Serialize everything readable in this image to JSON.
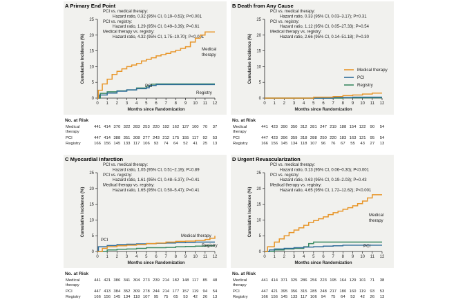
{
  "colors": {
    "medical": "#e8962a",
    "pci": "#2f6d9a",
    "registry": "#3b8a63",
    "axis": "#222222",
    "shade": "#f1f1ee"
  },
  "legend": [
    "Medical therapy",
    "PCI",
    "Registry"
  ],
  "chart_data": [
    {
      "type": "line",
      "letter": "A",
      "title": "Primary End Point",
      "xlabel": "Months since Randomization",
      "ylabel": "Cumulative Incidence (%)",
      "xlim": [
        0,
        12
      ],
      "ylim": [
        0,
        25
      ],
      "xticks": [
        "0",
        "1",
        "2",
        "3",
        "4",
        "5",
        "6",
        "7",
        "8",
        "9",
        "10",
        "11",
        "12"
      ],
      "yticks": [
        "0",
        "5",
        "10",
        "15",
        "20",
        "25"
      ],
      "stats": [
        "PCI vs. medical therapy:",
        "Hazard ratio, 0.32 (95% CI, 0.19–0.53); P<0.001",
        "PCI vs. registry:",
        "Hazard ratio, 1.29 (95% CI, 0.49–3.39); P=0.61",
        "Medical therapy vs. registry:",
        "Hazard ratio, 4.32 (95% CI, 1.75–10.70); P<0.001"
      ],
      "line_labels": [
        "PCI",
        "Registry",
        "Medical",
        "therapy"
      ],
      "series": [
        {
          "name": "Medical therapy",
          "x": [
            0,
            0.1,
            0.5,
            1,
            1.5,
            2,
            2.5,
            3,
            3.5,
            4,
            4.5,
            5,
            5.5,
            6,
            6.5,
            7,
            7.5,
            8,
            8.5,
            9,
            9.5,
            10,
            10.5,
            11,
            12
          ],
          "values": [
            0,
            2.5,
            4.5,
            6,
            7.5,
            8.5,
            9.3,
            10,
            10.5,
            11,
            11.8,
            12.3,
            12.8,
            13.4,
            13.8,
            14.2,
            14.7,
            15.2,
            15.8,
            16.3,
            17.8,
            19,
            20,
            21,
            21
          ]
        },
        {
          "name": "PCI",
          "x": [
            0,
            0.2,
            1,
            2,
            3,
            4,
            5,
            5.3,
            6,
            7,
            8,
            9,
            10,
            11,
            12
          ],
          "values": [
            0,
            1,
            1.6,
            2.2,
            2.6,
            3,
            3.3,
            4,
            4.3,
            4.3,
            4.3,
            4.3,
            4.3,
            4.3,
            4.3
          ]
        },
        {
          "name": "Registry",
          "x": [
            0,
            0.3,
            1,
            2,
            3,
            4,
            5,
            5.5,
            6,
            7,
            8,
            9,
            10,
            11,
            12
          ],
          "values": [
            0,
            1.5,
            2,
            2.3,
            2.6,
            3.2,
            3.8,
            4.4,
            4.5,
            4.5,
            4.5,
            4.5,
            4.5,
            4.5,
            4.5
          ]
        }
      ],
      "risk": {
        "title": "No. at Risk",
        "rows": [
          {
            "label": [
              "Medical",
              "therapy"
            ],
            "values": [
              "441",
              "414",
              "370",
              "322",
              "283",
              "253",
              "220",
              "192",
              "162",
              "127",
              "100",
              "70",
              "37"
            ]
          },
          {
            "label": [
              "PCI"
            ],
            "values": [
              "447",
              "414",
              "388",
              "351",
              "308",
              "277",
              "243",
              "212",
              "175",
              "155",
              "117",
              "92",
              "53"
            ]
          },
          {
            "label": [
              "Registry"
            ],
            "values": [
              "166",
              "156",
              "145",
              "133",
              "117",
              "106",
              "93",
              "74",
              "64",
              "52",
              "41",
              "25",
              "13"
            ]
          }
        ]
      }
    },
    {
      "type": "line",
      "letter": "B",
      "title": "Death from Any Cause",
      "xlabel": "Months since Randomization",
      "ylabel": "Cumulative Incidence (%)",
      "xlim": [
        0,
        12
      ],
      "ylim": [
        0,
        25
      ],
      "xticks": [
        "0",
        "1",
        "2",
        "3",
        "4",
        "5",
        "6",
        "7",
        "8",
        "9",
        "10",
        "11",
        "12"
      ],
      "yticks": [
        "0",
        "5",
        "10",
        "15",
        "20",
        "25"
      ],
      "stats": [
        "PCI vs. medical therapy:",
        "Hazard ratio, 0.33 (95% CI, 0.03–3.17); P=0.31",
        "PCI vs. registry:",
        "Hazard ratio, 1.12 (95% CI, 0.05–27.33); P=0.54",
        "Medical therapy vs. registry:",
        "Hazard ratio, 2.66 (95% CI, 0.14–51.18); P=0.30"
      ],
      "line_labels": [],
      "series": [
        {
          "name": "Medical therapy",
          "x": [
            0,
            3,
            5,
            6,
            7,
            8,
            9,
            10,
            11,
            12
          ],
          "values": [
            0,
            0,
            0.3,
            0.3,
            0.5,
            0.8,
            1,
            1.3,
            1.6,
            1.6
          ]
        },
        {
          "name": "PCI",
          "x": [
            0,
            5,
            6,
            7,
            8,
            9,
            10,
            11,
            12
          ],
          "values": [
            0,
            0,
            0,
            0.2,
            0.2,
            0.3,
            0.3,
            0.3,
            0.3
          ]
        },
        {
          "name": "Registry",
          "x": [
            0,
            5,
            6,
            7,
            8,
            9,
            10,
            11,
            12
          ],
          "values": [
            0,
            0,
            0,
            0,
            0.1,
            0.1,
            0.1,
            0.1,
            0.1
          ]
        }
      ],
      "risk": {
        "title": "No. at Risk",
        "rows": [
          {
            "label": [
              "Medical",
              "therapy"
            ],
            "values": [
              "441",
              "423",
              "390",
              "350",
              "312",
              "281",
              "247",
              "219",
              "188",
              "154",
              "122",
              "90",
              "54"
            ]
          },
          {
            "label": [
              "PCI"
            ],
            "values": [
              "447",
              "423",
              "396",
              "359",
              "318",
              "288",
              "250",
              "220",
              "183",
              "163",
              "121",
              "95",
              "54"
            ]
          },
          {
            "label": [
              "Registry"
            ],
            "values": [
              "166",
              "156",
              "145",
              "134",
              "118",
              "107",
              "96",
              "76",
              "67",
              "55",
              "43",
              "27",
              "13"
            ]
          }
        ]
      }
    },
    {
      "type": "line",
      "letter": "C",
      "title": "Myocardial Infarction",
      "xlabel": "Months since Randomization",
      "ylabel": "Cumulative Incidence (%)",
      "xlim": [
        0,
        12
      ],
      "ylim": [
        0,
        25
      ],
      "xticks": [
        "0",
        "1",
        "2",
        "3",
        "4",
        "5",
        "6",
        "7",
        "8",
        "9",
        "10",
        "11",
        "12"
      ],
      "yticks": [
        "0",
        "5",
        "10",
        "15",
        "20",
        "25"
      ],
      "stats": [
        "PCI vs. medical therapy:",
        "Hazard ratio, 1.05 (95% CI, 0.51–2.19); P=0.89",
        "PCI vs. registry:",
        "Hazard ratio, 1.61 (95% CI, 0.48–5.37); P=0.41",
        "Medical therapy vs. registry:",
        "Hazard ratio, 1.65 (95% CI, 0.50–5.47); P=0.41"
      ],
      "line_labels": [
        "PCI",
        "Medical therapy",
        "Registry"
      ],
      "series": [
        {
          "name": "Medical therapy",
          "x": [
            0,
            0.5,
            1,
            2,
            3,
            4,
            5,
            6,
            7,
            8,
            9,
            10,
            11,
            11.5,
            12
          ],
          "values": [
            0,
            1,
            1.5,
            1.8,
            2,
            2.2,
            2.5,
            2.7,
            3,
            3.2,
            3.3,
            3.5,
            3.8,
            4.2,
            5
          ]
        },
        {
          "name": "PCI",
          "x": [
            0,
            0.1,
            1,
            2,
            3,
            4,
            5,
            6,
            7,
            8,
            9,
            10,
            11,
            12
          ],
          "values": [
            0,
            1.5,
            1.9,
            2.2,
            2.3,
            2.4,
            2.5,
            2.6,
            2.7,
            2.8,
            2.9,
            3,
            3,
            3
          ]
        },
        {
          "name": "Registry",
          "x": [
            0,
            1,
            2,
            3,
            4,
            5,
            6,
            7,
            8,
            9,
            10,
            11,
            12
          ],
          "values": [
            0,
            0.5,
            0.7,
            0.8,
            1,
            1.2,
            1.2,
            1.3,
            1.5,
            1.6,
            1.7,
            1.8,
            1.8
          ]
        }
      ],
      "risk": {
        "title": "No. at Risk",
        "rows": [
          {
            "label": [
              "Medical",
              "therapy"
            ],
            "values": [
              "441",
              "421",
              "386",
              "341",
              "304",
              "273",
              "239",
              "214",
              "182",
              "148",
              "117",
              "85",
              "48"
            ]
          },
          {
            "label": [
              "PCI"
            ],
            "values": [
              "447",
              "413",
              "384",
              "352",
              "309",
              "278",
              "244",
              "214",
              "177",
              "157",
              "119",
              "94",
              "54"
            ]
          },
          {
            "label": [
              "Registry"
            ],
            "values": [
              "166",
              "156",
              "145",
              "134",
              "118",
              "107",
              "95",
              "75",
              "65",
              "53",
              "42",
              "26",
              "13"
            ]
          }
        ]
      }
    },
    {
      "type": "line",
      "letter": "D",
      "title": "Urgent Revascularization",
      "xlabel": "Months since Randomization",
      "ylabel": "Cumulative Incidence (%)",
      "xlim": [
        0,
        12
      ],
      "ylim": [
        0,
        25
      ],
      "xticks": [
        "0",
        "1",
        "2",
        "3",
        "4",
        "5",
        "6",
        "7",
        "8",
        "9",
        "10",
        "11",
        "12"
      ],
      "yticks": [
        "0",
        "5",
        "10",
        "15",
        "20",
        "25"
      ],
      "stats": [
        "PCI vs. medical therapy:",
        "Hazard ratio, 0.13 (95% CI, 0.06–0.30); P<0.001",
        "PCI vs. registry:",
        "Hazard ratio, 0.63 (95% CI, 0.19–2.03); P=0.43",
        "Medical therapy vs. registry:",
        "Hazard ratio, 4.65 (95% CI, 1.72–12.62); P<0.001"
      ],
      "line_labels": [
        "Medical",
        "therapy",
        "PCI"
      ],
      "series": [
        {
          "name": "Medical therapy",
          "x": [
            0,
            0.3,
            1,
            1.5,
            2,
            2.5,
            3,
            3.5,
            4,
            4.5,
            5,
            5.5,
            6,
            6.5,
            7,
            7.5,
            8,
            8.5,
            9,
            9.5,
            10,
            10.5,
            11,
            12
          ],
          "values": [
            0,
            1.5,
            3,
            4,
            5,
            6,
            6.8,
            7.5,
            8.3,
            9.2,
            9.8,
            10.4,
            11,
            11.7,
            12.3,
            12.8,
            13.4,
            13.9,
            14.5,
            15.2,
            16,
            17,
            18,
            18
          ]
        },
        {
          "name": "PCI",
          "x": [
            0,
            0.5,
            1,
            2,
            3,
            4,
            5,
            6,
            7,
            8,
            9,
            10,
            11,
            12
          ],
          "values": [
            0,
            0.5,
            0.8,
            1,
            1.2,
            1.4,
            1.5,
            1.7,
            1.8,
            2,
            2,
            2,
            2,
            2
          ]
        },
        {
          "name": "Registry",
          "x": [
            0,
            1,
            2,
            3,
            4,
            4.5,
            5,
            6,
            7,
            8,
            9,
            10,
            11,
            12
          ],
          "values": [
            0,
            0.5,
            0.8,
            1,
            1.5,
            2.5,
            3,
            3,
            3,
            3,
            3,
            3,
            3,
            3
          ]
        }
      ],
      "risk": {
        "title": "No. at Risk",
        "rows": [
          {
            "label": [
              "Medical",
              "therapy"
            ],
            "values": [
              "441",
              "414",
              "371",
              "325",
              "286",
              "256",
              "223",
              "195",
              "164",
              "129",
              "101",
              "71",
              "38"
            ]
          },
          {
            "label": [
              "PCI"
            ],
            "values": [
              "447",
              "421",
              "395",
              "356",
              "315",
              "285",
              "248",
              "217",
              "180",
              "160",
              "119",
              "93",
              "53"
            ]
          },
          {
            "label": [
              "Registry"
            ],
            "values": [
              "166",
              "156",
              "145",
              "133",
              "117",
              "106",
              "94",
              "75",
              "64",
              "53",
              "42",
              "26",
              "13"
            ]
          }
        ]
      }
    }
  ]
}
